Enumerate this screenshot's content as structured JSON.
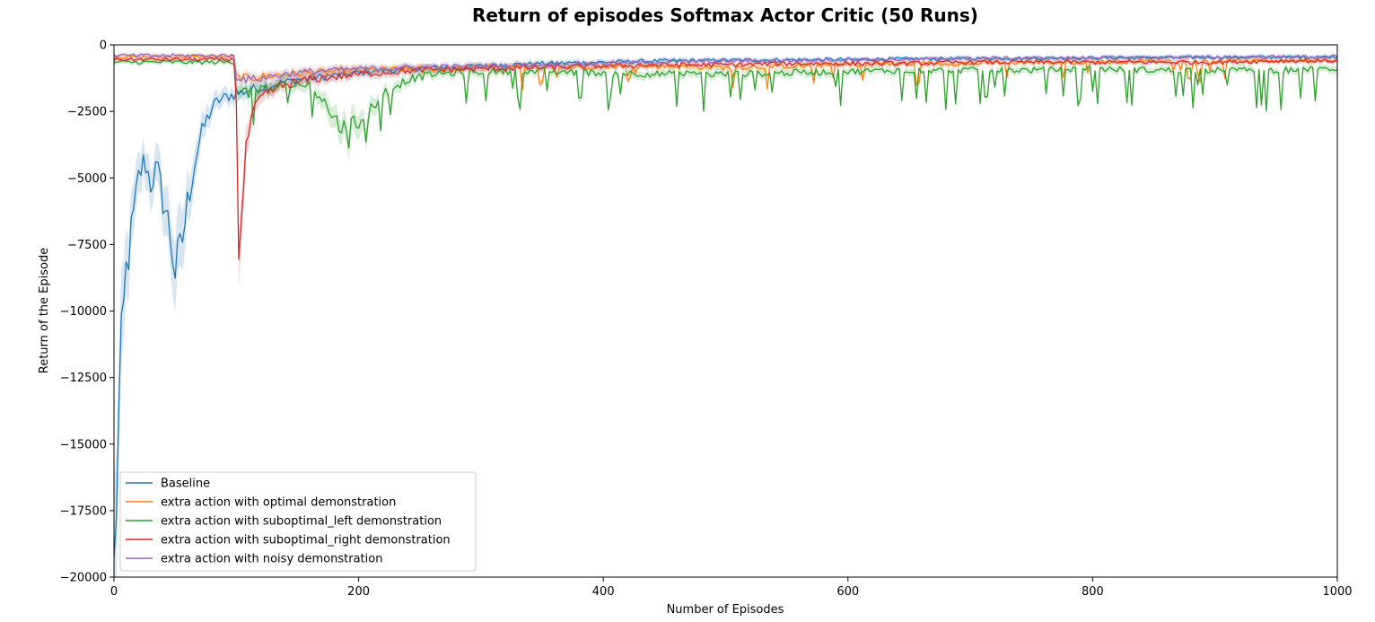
{
  "chart_data": {
    "type": "line",
    "title": "Return of episodes Softmax Actor Critic (50 Runs)",
    "xlabel": "Number of Episodes",
    "ylabel": "Return of the Episode",
    "xlim": [
      0,
      1000
    ],
    "ylim": [
      -20000,
      0
    ],
    "x_ticks": [
      0,
      200,
      400,
      600,
      800,
      1000
    ],
    "y_ticks": [
      0,
      -2500,
      -5000,
      -7500,
      -10000,
      -12500,
      -15000,
      -17500,
      -20000
    ],
    "x_tick_labels": [
      "0",
      "200",
      "400",
      "600",
      "800",
      "1000"
    ],
    "y_tick_labels": [
      "0",
      "−2500",
      "−5000",
      "−7500",
      "−10000",
      "−12500",
      "−15000",
      "−17500",
      "−20000"
    ],
    "grid": false,
    "legend_position": "lower-left",
    "shaded_confidence_band": true,
    "series": [
      {
        "name": "Baseline",
        "color": "#1f77b4",
        "x": [
          0,
          2,
          4,
          6,
          8,
          10,
          13,
          16,
          20,
          25,
          30,
          35,
          40,
          45,
          50,
          55,
          60,
          65,
          70,
          75,
          80,
          85,
          90,
          95,
          100,
          110,
          120,
          130,
          140,
          150,
          160,
          170,
          180,
          190,
          200,
          210,
          220,
          230,
          240,
          250,
          260,
          280,
          300,
          320,
          350,
          400,
          450,
          500,
          550,
          600,
          650,
          700,
          750,
          800,
          850,
          900,
          950,
          1000
        ],
        "y": [
          -20000,
          -17000,
          -14000,
          -11500,
          -10000,
          -8500,
          -7500,
          -6500,
          -5000,
          -4300,
          -5200,
          -4600,
          -5800,
          -6800,
          -8500,
          -7600,
          -6000,
          -4600,
          -3600,
          -2900,
          -2400,
          -2100,
          -2000,
          -1900,
          -1850,
          -1700,
          -1600,
          -1500,
          -1400,
          -1300,
          -1250,
          -1200,
          -1150,
          -1100,
          -1050,
          -1000,
          -950,
          -950,
          -900,
          -900,
          -850,
          -850,
          -800,
          -750,
          -700,
          -650,
          -600,
          -580,
          -560,
          -550,
          -530,
          -510,
          -500,
          -490,
          -480,
          -470,
          -460,
          -450
        ]
      },
      {
        "name": "extra action with optimal demonstration",
        "color": "#ff7f0e",
        "x": [
          0,
          20,
          40,
          60,
          80,
          99,
          100,
          110,
          120,
          140,
          160,
          180,
          200,
          250,
          300,
          350,
          400,
          450,
          500,
          550,
          600,
          650,
          700,
          750,
          800,
          850,
          900,
          950,
          1000
        ],
        "y": [
          -450,
          -450,
          -450,
          -450,
          -450,
          -450,
          -1200,
          -1250,
          -1200,
          -1100,
          -1050,
          -1000,
          -950,
          -900,
          -850,
          -850,
          -800,
          -800,
          -850,
          -800,
          -750,
          -700,
          -700,
          -650,
          -650,
          -600,
          -600,
          -600,
          -550
        ]
      },
      {
        "name": "extra action with suboptimal_left demonstration",
        "color": "#2ca02c",
        "x": [
          0,
          20,
          40,
          60,
          80,
          99,
          100,
          110,
          120,
          140,
          160,
          170,
          180,
          190,
          200,
          210,
          220,
          240,
          260,
          300,
          350,
          400,
          450,
          500,
          550,
          600,
          650,
          700,
          750,
          800,
          850,
          900,
          950,
          1000
        ],
        "y": [
          -650,
          -650,
          -650,
          -650,
          -650,
          -650,
          -1600,
          -1800,
          -1700,
          -1500,
          -1500,
          -2000,
          -2800,
          -3200,
          -2900,
          -2400,
          -1800,
          -1300,
          -1100,
          -1000,
          -1000,
          -1050,
          -1100,
          -1100,
          -1050,
          -1000,
          -950,
          -950,
          -950,
          -900,
          -950,
          -950,
          -950,
          -900
        ]
      },
      {
        "name": "extra action with suboptimal_right demonstration",
        "color": "#d62728",
        "x": [
          0,
          20,
          40,
          60,
          80,
          99,
          100,
          101,
          103,
          105,
          107,
          110,
          114,
          120,
          130,
          140,
          160,
          180,
          200,
          250,
          300,
          350,
          400,
          450,
          500,
          550,
          600,
          650,
          700,
          750,
          800,
          850,
          900,
          950,
          1000
        ],
        "y": [
          -550,
          -550,
          -550,
          -550,
          -550,
          -550,
          -2000,
          -7500,
          -7600,
          -6200,
          -4500,
          -3300,
          -2600,
          -2000,
          -1700,
          -1500,
          -1300,
          -1200,
          -1100,
          -950,
          -900,
          -850,
          -800,
          -750,
          -750,
          -700,
          -700,
          -700,
          -650,
          -650,
          -650,
          -650,
          -650,
          -600,
          -600
        ]
      },
      {
        "name": "extra action with noisy demonstration",
        "color": "#9467bd",
        "x": [
          0,
          20,
          40,
          60,
          80,
          99,
          100,
          110,
          120,
          140,
          160,
          180,
          200,
          250,
          300,
          350,
          400,
          450,
          500,
          550,
          600,
          650,
          700,
          750,
          800,
          850,
          900,
          950,
          1000
        ],
        "y": [
          -400,
          -400,
          -400,
          -400,
          -400,
          -400,
          -1200,
          -1300,
          -1250,
          -1100,
          -1000,
          -950,
          -900,
          -850,
          -800,
          -750,
          -700,
          -650,
          -600,
          -600,
          -550,
          -550,
          -500,
          -500,
          -480,
          -470,
          -460,
          -450,
          -450
        ]
      }
    ]
  }
}
